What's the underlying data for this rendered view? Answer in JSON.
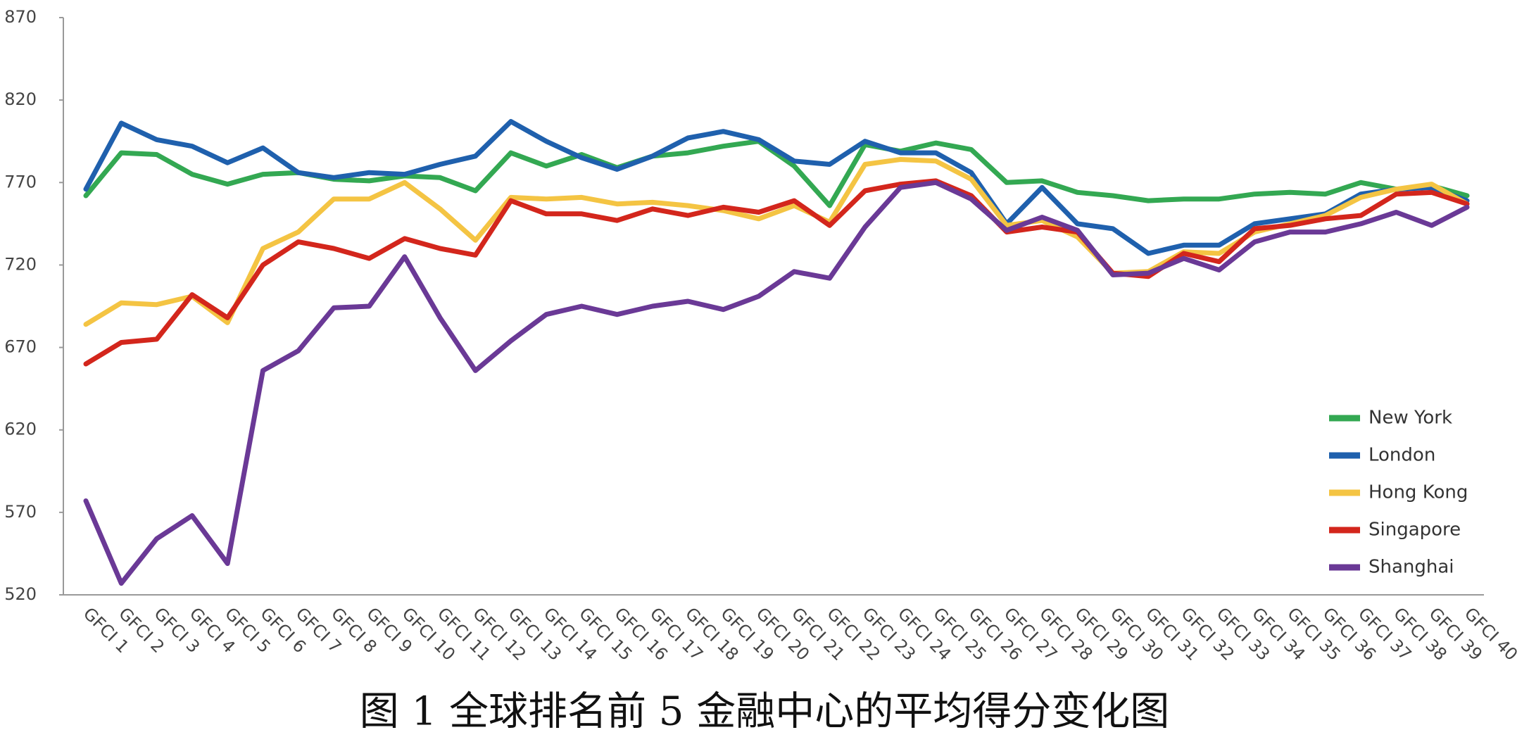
{
  "chart_data": {
    "type": "line",
    "title": "图 1 全球排名前 5 金融中心的平均得分变化图",
    "categories": [
      "GFCI 1",
      "GFCI 2",
      "GFCI 3",
      "GFCI 4",
      "GFCI 5",
      "GFCI 6",
      "GFCI 7",
      "GFCI 8",
      "GFCI 9",
      "GFCI 10",
      "GFCI 11",
      "GFCI 12",
      "GFCI 13",
      "GFCI 14",
      "GFCI 15",
      "GFCI 16",
      "GFCI 17",
      "GFCI 18",
      "GFCI 19",
      "GFCI 20",
      "GFCI 21",
      "GFCI 22",
      "GFCI 23",
      "GFCI 24",
      "GFCI 25",
      "GFCI 26",
      "GFCI 27",
      "GFCI 28",
      "GFCI 29",
      "GFCI 30",
      "GFCI 31",
      "GFCI 32",
      "GFCI 33",
      "GFCI 34",
      "GFCI 35",
      "GFCI 36",
      "GFCI 37",
      "GFCI 38",
      "GFCI 39",
      "GFCI 40"
    ],
    "series": [
      {
        "name": "New York",
        "color": "#33a852",
        "values": [
          762,
          788,
          787,
          775,
          769,
          775,
          776,
          772,
          771,
          774,
          773,
          765,
          788,
          780,
          787,
          779,
          786,
          788,
          792,
          795,
          780,
          756,
          793,
          789,
          794,
          790,
          770,
          771,
          764,
          762,
          759,
          760,
          760,
          763,
          764,
          763,
          770,
          766,
          768,
          762
        ]
      },
      {
        "name": "London",
        "color": "#1f60ad",
        "values": [
          766,
          806,
          796,
          792,
          782,
          791,
          776,
          773,
          776,
          775,
          781,
          786,
          807,
          795,
          785,
          778,
          786,
          797,
          801,
          796,
          783,
          781,
          795,
          788,
          788,
          776,
          745,
          767,
          745,
          742,
          727,
          732,
          732,
          745,
          748,
          751,
          763,
          766,
          767,
          759
        ]
      },
      {
        "name": "Hong Kong",
        "color": "#f4c443",
        "values": [
          684,
          697,
          696,
          701,
          685,
          730,
          740,
          760,
          760,
          770,
          754,
          735,
          761,
          760,
          761,
          757,
          758,
          756,
          753,
          748,
          756,
          746,
          781,
          784,
          783,
          772,
          744,
          747,
          737,
          715,
          716,
          728,
          727,
          740,
          745,
          750,
          761,
          766,
          769,
          757
        ]
      },
      {
        "name": "Singapore",
        "color": "#d3261c",
        "values": [
          660,
          673,
          675,
          702,
          688,
          720,
          734,
          730,
          724,
          736,
          730,
          726,
          759,
          751,
          751,
          747,
          754,
          750,
          755,
          752,
          759,
          744,
          765,
          769,
          771,
          762,
          740,
          743,
          740,
          715,
          713,
          727,
          722,
          742,
          744,
          748,
          750,
          763,
          764,
          757
        ]
      },
      {
        "name": "Shanghai",
        "color": "#6a3996",
        "values": [
          577,
          527,
          554,
          568,
          539,
          656,
          668,
          694,
          695,
          725,
          688,
          656,
          674,
          690,
          695,
          690,
          695,
          698,
          693,
          701,
          716,
          712,
          743,
          767,
          770,
          760,
          741,
          749,
          741,
          714,
          715,
          724,
          717,
          734,
          740,
          740,
          745,
          752,
          744,
          755
        ]
      }
    ],
    "ylim": [
      520,
      870
    ],
    "yticks": [
      520,
      570,
      620,
      670,
      720,
      770,
      820,
      870
    ],
    "legend": "right",
    "grid": false
  }
}
